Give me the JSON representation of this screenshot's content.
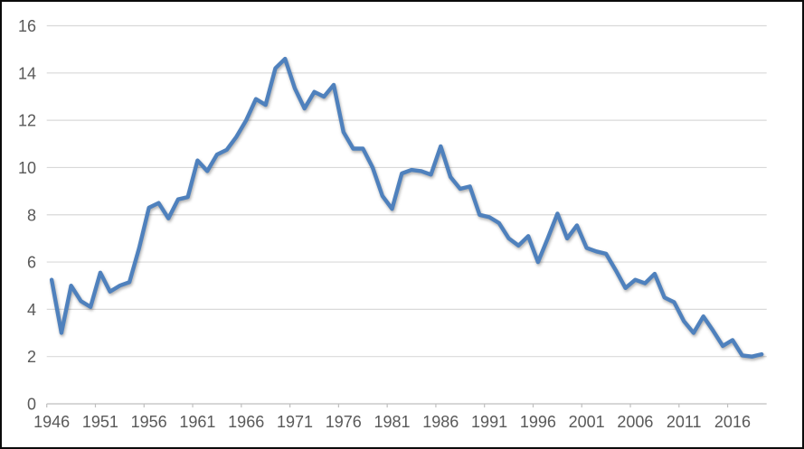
{
  "chart_data": {
    "type": "line",
    "title": "",
    "xlabel": "",
    "ylabel": "",
    "x": [
      1946,
      1947,
      1948,
      1949,
      1950,
      1951,
      1952,
      1953,
      1954,
      1955,
      1956,
      1957,
      1958,
      1959,
      1960,
      1961,
      1962,
      1963,
      1964,
      1965,
      1966,
      1967,
      1968,
      1969,
      1970,
      1971,
      1972,
      1973,
      1974,
      1975,
      1976,
      1977,
      1978,
      1979,
      1980,
      1981,
      1982,
      1983,
      1984,
      1985,
      1986,
      1987,
      1988,
      1989,
      1990,
      1991,
      1992,
      1993,
      1994,
      1995,
      1996,
      1997,
      1998,
      1999,
      2000,
      2001,
      2002,
      2003,
      2004,
      2005,
      2006,
      2007,
      2008,
      2009,
      2010,
      2011,
      2012,
      2013,
      2014,
      2015,
      2016,
      2017,
      2018,
      2019
    ],
    "values": [
      5.25,
      3.0,
      5.0,
      4.35,
      4.1,
      5.55,
      4.75,
      5.0,
      5.15,
      6.6,
      8.3,
      8.5,
      7.85,
      8.65,
      8.75,
      10.3,
      9.85,
      10.55,
      10.75,
      11.3,
      12.0,
      12.9,
      12.65,
      14.2,
      14.6,
      13.35,
      12.5,
      13.2,
      13.0,
      13.5,
      11.5,
      10.8,
      10.8,
      10.0,
      8.8,
      8.25,
      9.75,
      9.9,
      9.85,
      9.7,
      10.9,
      9.6,
      9.1,
      9.2,
      8.0,
      7.9,
      7.65,
      7.0,
      6.7,
      7.1,
      6.0,
      7.0,
      8.05,
      7.0,
      7.55,
      6.6,
      6.45,
      6.35,
      5.65,
      4.9,
      5.25,
      5.1,
      5.5,
      4.5,
      4.3,
      3.5,
      3.0,
      3.7,
      3.1,
      2.45,
      2.7,
      2.05,
      2.0,
      2.1
    ],
    "ylim": [
      0,
      16
    ],
    "ytick_step": 2,
    "ytick_labels": [
      "0",
      "2",
      "4",
      "6",
      "8",
      "10",
      "12",
      "14",
      "16"
    ],
    "xtick_years": [
      1946,
      1951,
      1956,
      1961,
      1966,
      1971,
      1976,
      1981,
      1986,
      1991,
      1996,
      2001,
      2006,
      2011,
      2016
    ],
    "xtick_labels": [
      "1946",
      "1951",
      "1956",
      "1961",
      "1966",
      "1971",
      "1976",
      "1981",
      "1986",
      "1991",
      "1996",
      "2001",
      "2006",
      "2011",
      "2016"
    ],
    "grid": true,
    "legend": "none"
  },
  "style": {
    "line_color": "#4F81BD",
    "grid_color": "#D9D9D9",
    "axis_color": "#BFBFBF",
    "tick_color": "#BFBFBF",
    "label_color": "#595959",
    "background_color": "#FFFFFF",
    "frame_color": "#0B0B0B"
  }
}
